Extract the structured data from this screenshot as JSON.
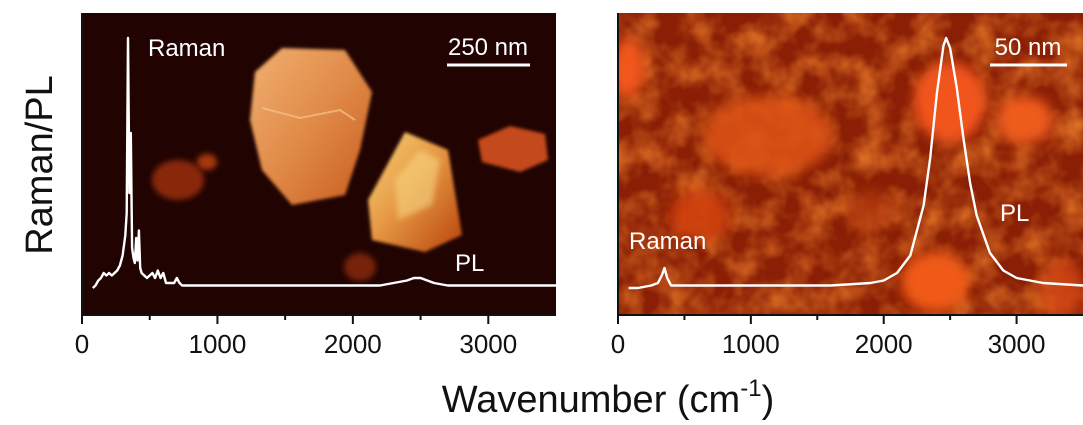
{
  "chart_data": [
    {
      "type": "line",
      "panel": "left",
      "xlim": [
        0,
        3500
      ],
      "ticks": [
        0,
        1000,
        2000,
        3000
      ],
      "tick_labels": [
        "0",
        "1000",
        "2000",
        "3000"
      ],
      "ylim": [
        0,
        1.0
      ],
      "series": [
        {
          "x": [
            80,
            100,
            120,
            140,
            160,
            180,
            200,
            220,
            240,
            260,
            280,
            300,
            320,
            330,
            340,
            350,
            360,
            370,
            380,
            390,
            400,
            410,
            420,
            430,
            440,
            460,
            480,
            500,
            520,
            540,
            560,
            580,
            600,
            620,
            640,
            660,
            680,
            700,
            720,
            740,
            780,
            850,
            1000,
            1500,
            2000,
            2200,
            2300,
            2400,
            2450,
            2500,
            2550,
            2600,
            2700,
            2800,
            3000,
            3200,
            3500
          ],
          "y": [
            0.0,
            0.01,
            0.03,
            0.04,
            0.06,
            0.05,
            0.06,
            0.05,
            0.06,
            0.07,
            0.09,
            0.13,
            0.21,
            0.3,
            1.0,
            0.38,
            0.62,
            0.16,
            0.12,
            0.1,
            0.2,
            0.11,
            0.23,
            0.08,
            0.06,
            0.05,
            0.04,
            0.05,
            0.06,
            0.04,
            0.07,
            0.04,
            0.06,
            0.02,
            0.02,
            0.02,
            0.02,
            0.04,
            0.02,
            0.01,
            0.01,
            0.01,
            0.01,
            0.01,
            0.01,
            0.01,
            0.02,
            0.03,
            0.04,
            0.04,
            0.03,
            0.02,
            0.01,
            0.01,
            0.01,
            0.01,
            0.01
          ]
        }
      ],
      "annotations": [
        "Raman",
        "PL"
      ],
      "scale_bar": "250 nm"
    },
    {
      "type": "line",
      "panel": "right",
      "xlim": [
        0,
        3500
      ],
      "ticks": [
        0,
        1000,
        2000,
        3000
      ],
      "tick_labels": [
        "0",
        "1000",
        "2000",
        "3000"
      ],
      "ylim": [
        0,
        1.0
      ],
      "series": [
        {
          "x": [
            80,
            150,
            250,
            300,
            330,
            350,
            370,
            400,
            500,
            800,
            1200,
            1600,
            1900,
            2000,
            2100,
            2200,
            2300,
            2350,
            2400,
            2450,
            2470,
            2500,
            2550,
            2600,
            2650,
            2700,
            2800,
            2900,
            3000,
            3200,
            3500
          ],
          "y": [
            0.0,
            0.0,
            0.01,
            0.02,
            0.05,
            0.08,
            0.04,
            0.01,
            0.01,
            0.01,
            0.01,
            0.01,
            0.02,
            0.03,
            0.06,
            0.13,
            0.33,
            0.52,
            0.78,
            0.97,
            1.0,
            0.96,
            0.8,
            0.6,
            0.42,
            0.29,
            0.14,
            0.07,
            0.04,
            0.02,
            0.01
          ]
        }
      ],
      "annotations": [
        "Raman",
        "PL"
      ],
      "scale_bar": "50 nm"
    }
  ],
  "axes": {
    "ylabel": "Raman/PL",
    "xlabel_main": "Wavenumber (cm",
    "xlabel_sup": "-1",
    "xlabel_close": ")"
  }
}
